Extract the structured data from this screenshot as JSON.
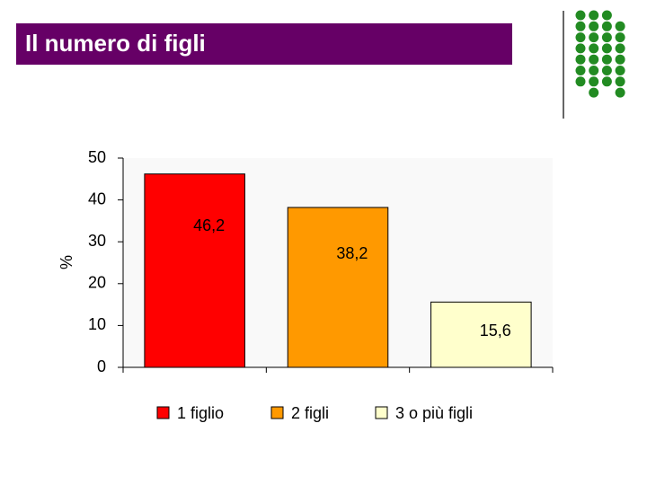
{
  "chart_data": {
    "type": "bar",
    "title": "Il numero di figli",
    "y_label": "%",
    "categories": [
      "1 figlio",
      "2 figli",
      "3 o più figli"
    ],
    "values": [
      46.2,
      38.2,
      15.6
    ],
    "value_labels": [
      "46,2",
      "38,2",
      "15,6"
    ],
    "colors": [
      "#ff0000",
      "#ff9900",
      "#ffffcc"
    ],
    "ylim": [
      0,
      50
    ],
    "yticks": [
      0,
      10,
      20,
      30,
      40,
      50
    ],
    "grid": false,
    "legend": "bottom"
  }
}
